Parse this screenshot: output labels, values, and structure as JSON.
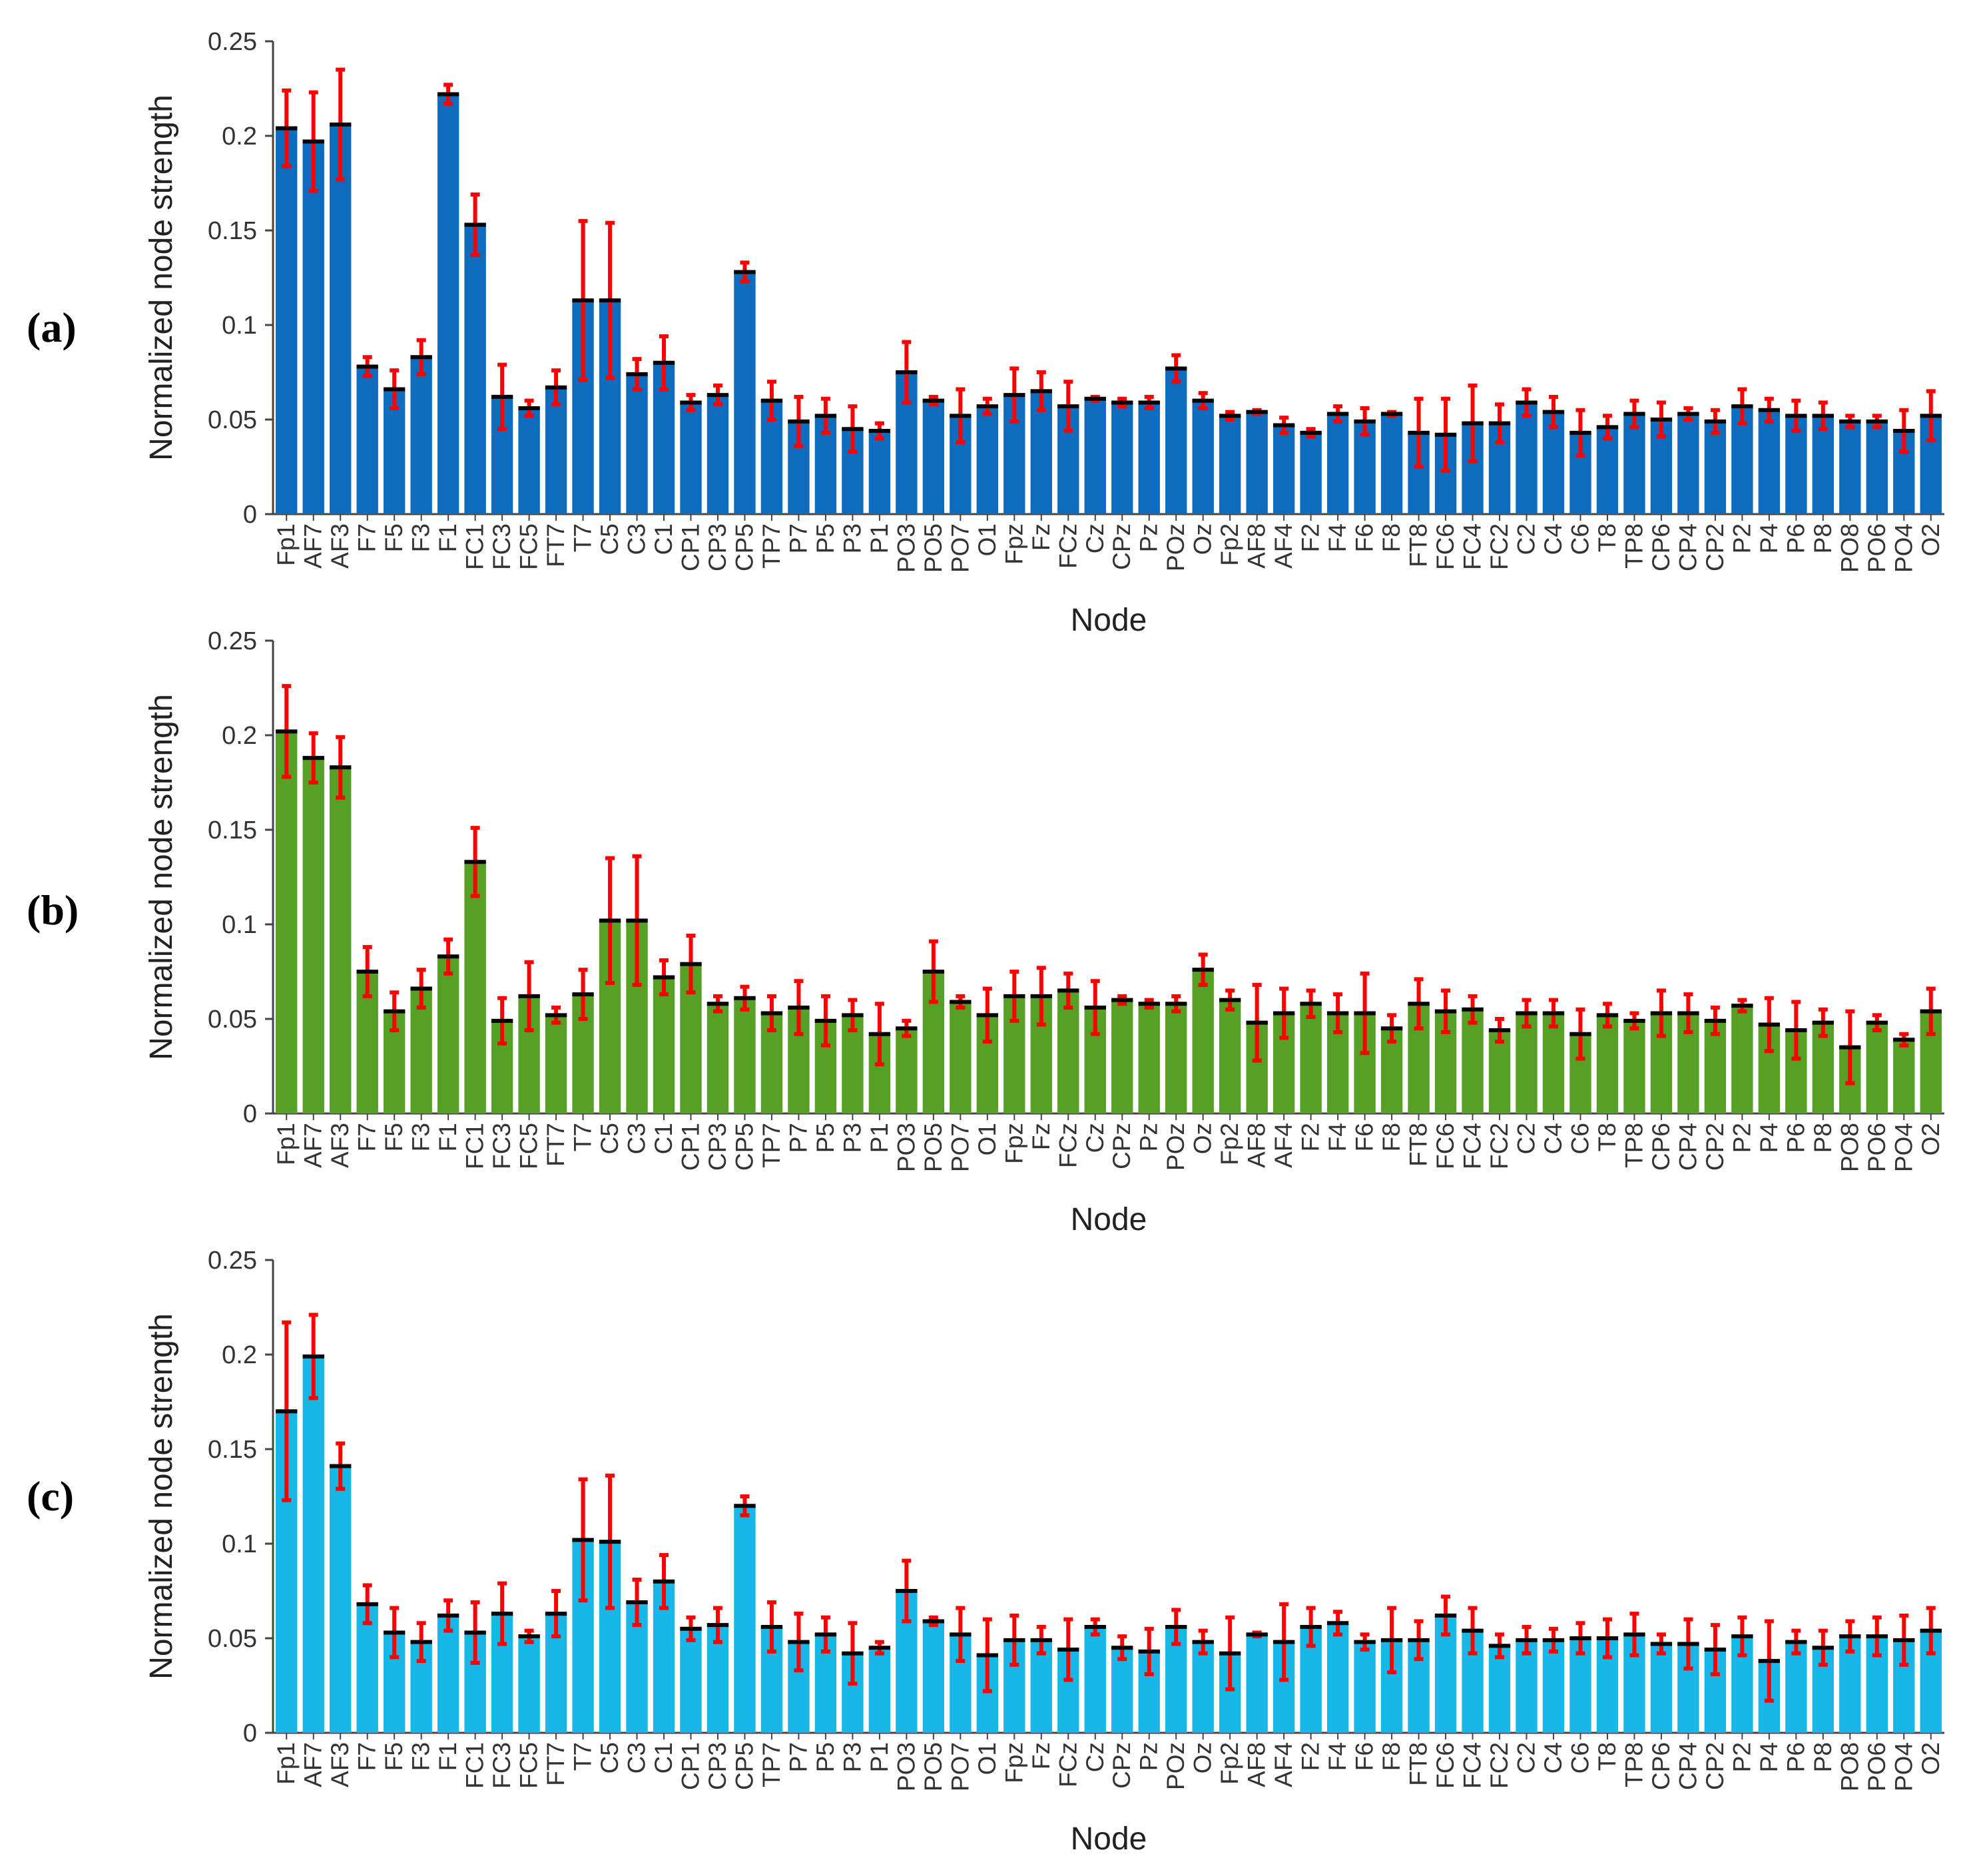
{
  "panel_labels": [
    "(a)",
    "(b)",
    "(c)"
  ],
  "chart_data": [
    {
      "type": "bar",
      "panel": "(a)",
      "title": "",
      "xlabel": "Node",
      "ylabel": "Normalized node strength",
      "ylim": [
        0,
        0.25
      ],
      "yticks": [
        "0",
        "0.05",
        "0.1",
        "0.15",
        "0.2",
        "0.25"
      ],
      "grid": false,
      "bar_color": "#0e6cbe",
      "error_color": "#ff0000",
      "mean_marker_color": "#000000",
      "categories": [
        "Fp1",
        "AF7",
        "AF3",
        "F7",
        "F5",
        "F3",
        "F1",
        "FC1",
        "FC3",
        "FC5",
        "FT7",
        "T7",
        "C5",
        "C3",
        "C1",
        "CP1",
        "CP3",
        "CP5",
        "TP7",
        "P7",
        "P5",
        "P3",
        "P1",
        "PO3",
        "PO5",
        "PO7",
        "O1",
        "Fpz",
        "Fz",
        "FCz",
        "Cz",
        "CPz",
        "Pz",
        "POz",
        "Oz",
        "Fp2",
        "AF8",
        "AF4",
        "F2",
        "F4",
        "F6",
        "F8",
        "FT8",
        "FC6",
        "FC4",
        "FC2",
        "C2",
        "C4",
        "C6",
        "T8",
        "TP8",
        "CP6",
        "CP4",
        "CP2",
        "P2",
        "P4",
        "P6",
        "P8",
        "PO8",
        "PO6",
        "PO4",
        "O2"
      ],
      "values": [
        0.204,
        0.197,
        0.206,
        0.078,
        0.066,
        0.083,
        0.222,
        0.153,
        0.062,
        0.056,
        0.067,
        0.113,
        0.113,
        0.074,
        0.08,
        0.059,
        0.063,
        0.128,
        0.06,
        0.049,
        0.052,
        0.045,
        0.044,
        0.075,
        0.06,
        0.052,
        0.057,
        0.063,
        0.065,
        0.057,
        0.061,
        0.059,
        0.059,
        0.077,
        0.06,
        0.052,
        0.054,
        0.047,
        0.043,
        0.053,
        0.049,
        0.053,
        0.043,
        0.042,
        0.048,
        0.048,
        0.059,
        0.054,
        0.043,
        0.046,
        0.053,
        0.05,
        0.053,
        0.049,
        0.057,
        0.055,
        0.052,
        0.052,
        0.049,
        0.049,
        0.044,
        0.052
      ],
      "errors": [
        0.02,
        0.026,
        0.029,
        0.005,
        0.01,
        0.009,
        0.005,
        0.016,
        0.017,
        0.004,
        0.009,
        0.042,
        0.041,
        0.008,
        0.014,
        0.004,
        0.005,
        0.005,
        0.01,
        0.013,
        0.009,
        0.012,
        0.004,
        0.016,
        0.002,
        0.014,
        0.004,
        0.014,
        0.01,
        0.013,
        0.001,
        0.002,
        0.003,
        0.007,
        0.004,
        0.002,
        0.001,
        0.004,
        0.002,
        0.004,
        0.007,
        0.001,
        0.018,
        0.019,
        0.02,
        0.01,
        0.007,
        0.008,
        0.012,
        0.006,
        0.007,
        0.009,
        0.003,
        0.006,
        0.009,
        0.006,
        0.008,
        0.007,
        0.003,
        0.003,
        0.011,
        0.013
      ]
    },
    {
      "type": "bar",
      "panel": "(b)",
      "title": "",
      "xlabel": "Node",
      "ylabel": "Normalized node strength",
      "ylim": [
        0,
        0.25
      ],
      "yticks": [
        "0",
        "0.05",
        "0.1",
        "0.15",
        "0.2",
        "0.25"
      ],
      "grid": false,
      "bar_color": "#55a025",
      "error_color": "#ff0000",
      "mean_marker_color": "#000000",
      "categories": [
        "Fp1",
        "AF7",
        "AF3",
        "F7",
        "F5",
        "F3",
        "F1",
        "FC1",
        "FC3",
        "FC5",
        "FT7",
        "T7",
        "C5",
        "C3",
        "C1",
        "CP1",
        "CP3",
        "CP5",
        "TP7",
        "P7",
        "P5",
        "P3",
        "P1",
        "PO3",
        "PO5",
        "PO7",
        "O1",
        "Fpz",
        "Fz",
        "FCz",
        "Cz",
        "CPz",
        "Pz",
        "POz",
        "Oz",
        "Fp2",
        "AF8",
        "AF4",
        "F2",
        "F4",
        "F6",
        "F8",
        "FT8",
        "FC6",
        "FC4",
        "FC2",
        "C2",
        "C4",
        "C6",
        "T8",
        "TP8",
        "CP6",
        "CP4",
        "CP2",
        "P2",
        "P4",
        "P6",
        "P8",
        "PO8",
        "PO6",
        "PO4",
        "O2"
      ],
      "values": [
        0.202,
        0.188,
        0.183,
        0.075,
        0.054,
        0.066,
        0.083,
        0.133,
        0.049,
        0.062,
        0.052,
        0.063,
        0.102,
        0.102,
        0.072,
        0.079,
        0.058,
        0.061,
        0.053,
        0.056,
        0.049,
        0.052,
        0.042,
        0.045,
        0.075,
        0.059,
        0.052,
        0.062,
        0.062,
        0.065,
        0.056,
        0.06,
        0.058,
        0.058,
        0.076,
        0.06,
        0.048,
        0.053,
        0.058,
        0.053,
        0.053,
        0.045,
        0.058,
        0.054,
        0.055,
        0.044,
        0.053,
        0.053,
        0.042,
        0.052,
        0.049,
        0.053,
        0.053,
        0.049,
        0.057,
        0.047,
        0.044,
        0.048,
        0.035,
        0.048,
        0.039,
        0.054
      ],
      "errors": [
        0.024,
        0.013,
        0.016,
        0.013,
        0.01,
        0.01,
        0.009,
        0.018,
        0.012,
        0.018,
        0.004,
        0.013,
        0.033,
        0.034,
        0.009,
        0.015,
        0.004,
        0.006,
        0.009,
        0.014,
        0.013,
        0.008,
        0.016,
        0.004,
        0.016,
        0.003,
        0.014,
        0.013,
        0.015,
        0.009,
        0.014,
        0.002,
        0.002,
        0.004,
        0.008,
        0.005,
        0.02,
        0.013,
        0.007,
        0.01,
        0.021,
        0.007,
        0.013,
        0.011,
        0.007,
        0.006,
        0.007,
        0.007,
        0.013,
        0.006,
        0.004,
        0.012,
        0.01,
        0.007,
        0.003,
        0.014,
        0.015,
        0.007,
        0.019,
        0.004,
        0.003,
        0.012
      ]
    },
    {
      "type": "bar",
      "panel": "(c)",
      "title": "",
      "xlabel": "Node",
      "ylabel": "Normalized node strength",
      "ylim": [
        0,
        0.25
      ],
      "yticks": [
        "0",
        "0.05",
        "0.1",
        "0.15",
        "0.2",
        "0.25"
      ],
      "grid": false,
      "bar_color": "#17b8e8",
      "error_color": "#ff0000",
      "mean_marker_color": "#000000",
      "categories": [
        "Fp1",
        "AF7",
        "AF3",
        "F7",
        "F5",
        "F3",
        "F1",
        "FC1",
        "FC3",
        "FC5",
        "FT7",
        "T7",
        "C5",
        "C3",
        "C1",
        "CP1",
        "CP3",
        "CP5",
        "TP7",
        "P7",
        "P5",
        "P3",
        "P1",
        "PO3",
        "PO5",
        "PO7",
        "O1",
        "Fpz",
        "Fz",
        "FCz",
        "Cz",
        "CPz",
        "Pz",
        "POz",
        "Oz",
        "Fp2",
        "AF8",
        "AF4",
        "F2",
        "F4",
        "F6",
        "F8",
        "FT8",
        "FC6",
        "FC4",
        "FC2",
        "C2",
        "C4",
        "C6",
        "T8",
        "TP8",
        "CP6",
        "CP4",
        "CP2",
        "P2",
        "P4",
        "P6",
        "P8",
        "PO8",
        "PO6",
        "PO4",
        "O2"
      ],
      "values": [
        0.17,
        0.199,
        0.141,
        0.068,
        0.053,
        0.048,
        0.062,
        0.053,
        0.063,
        0.051,
        0.063,
        0.102,
        0.101,
        0.069,
        0.08,
        0.055,
        0.057,
        0.12,
        0.056,
        0.048,
        0.052,
        0.042,
        0.045,
        0.075,
        0.059,
        0.052,
        0.041,
        0.049,
        0.049,
        0.044,
        0.056,
        0.045,
        0.043,
        0.056,
        0.048,
        0.042,
        0.052,
        0.048,
        0.056,
        0.058,
        0.048,
        0.049,
        0.049,
        0.062,
        0.054,
        0.046,
        0.049,
        0.049,
        0.05,
        0.05,
        0.052,
        0.047,
        0.047,
        0.044,
        0.051,
        0.038,
        0.048,
        0.045,
        0.051,
        0.051,
        0.049,
        0.054
      ],
      "errors": [
        0.047,
        0.022,
        0.012,
        0.01,
        0.013,
        0.01,
        0.008,
        0.016,
        0.016,
        0.003,
        0.012,
        0.032,
        0.035,
        0.012,
        0.014,
        0.006,
        0.009,
        0.005,
        0.013,
        0.015,
        0.009,
        0.016,
        0.003,
        0.016,
        0.002,
        0.014,
        0.019,
        0.013,
        0.007,
        0.016,
        0.004,
        0.006,
        0.012,
        0.009,
        0.006,
        0.019,
        0.001,
        0.02,
        0.01,
        0.006,
        0.004,
        0.017,
        0.01,
        0.01,
        0.012,
        0.006,
        0.007,
        0.006,
        0.008,
        0.01,
        0.011,
        0.005,
        0.013,
        0.013,
        0.01,
        0.021,
        0.006,
        0.009,
        0.008,
        0.01,
        0.013,
        0.012
      ]
    }
  ]
}
